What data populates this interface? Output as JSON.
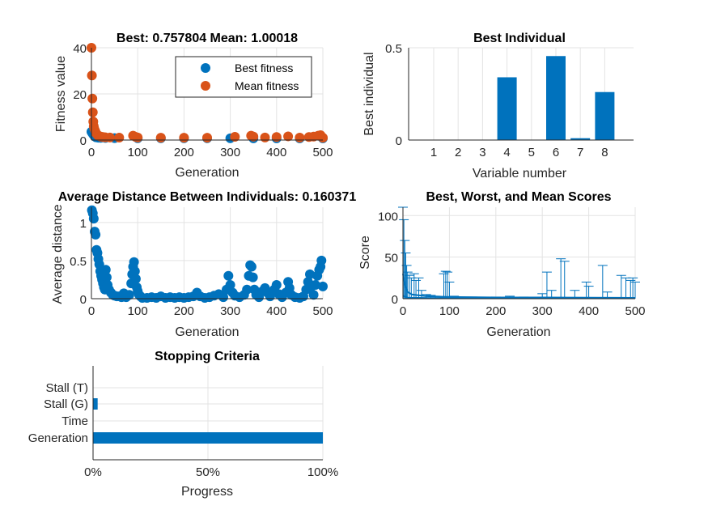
{
  "chart_data": [
    {
      "id": "fitness",
      "type": "scatter",
      "title": "Best: 0.757804 Mean: 1.00018",
      "xlabel": "Generation",
      "ylabel": "Fitness value",
      "xlim": [
        0,
        500
      ],
      "ylim": [
        0,
        40
      ],
      "xticks": [
        0,
        100,
        200,
        300,
        400,
        500
      ],
      "yticks": [
        0,
        20,
        40
      ],
      "grid": true,
      "legend_position": "top-right",
      "series": [
        {
          "name": "Best fitness",
          "color": "#0072BD",
          "points": [
            [
              0,
              3.6
            ],
            [
              2,
              3.0
            ],
            [
              4,
              2.4
            ],
            [
              6,
              1.9
            ],
            [
              8,
              1.5
            ],
            [
              10,
              1.2
            ],
            [
              15,
              1.0
            ],
            [
              20,
              0.95
            ],
            [
              30,
              0.9
            ],
            [
              50,
              0.85
            ],
            [
              100,
              0.8
            ],
            [
              150,
              0.79
            ],
            [
              200,
              0.78
            ],
            [
              250,
              0.77
            ],
            [
              300,
              0.765
            ],
            [
              350,
              0.76
            ],
            [
              400,
              0.76
            ],
            [
              450,
              0.758
            ],
            [
              500,
              0.757804
            ]
          ]
        },
        {
          "name": "Mean fitness",
          "color": "#D95319",
          "points": [
            [
              0,
              40
            ],
            [
              1,
              28
            ],
            [
              2,
              18
            ],
            [
              3,
              12
            ],
            [
              4,
              8
            ],
            [
              5,
              6
            ],
            [
              6,
              5
            ],
            [
              8,
              4
            ],
            [
              10,
              3
            ],
            [
              13,
              2.2
            ],
            [
              16,
              1.8
            ],
            [
              20,
              1.5
            ],
            [
              25,
              1.3
            ],
            [
              30,
              1.2
            ],
            [
              40,
              1.1
            ],
            [
              60,
              1.05
            ],
            [
              90,
              1.9
            ],
            [
              95,
              1.4
            ],
            [
              100,
              1.1
            ],
            [
              150,
              1.0
            ],
            [
              200,
              1.0
            ],
            [
              250,
              1.0
            ],
            [
              310,
              1.4
            ],
            [
              345,
              1.9
            ],
            [
              350,
              1.5
            ],
            [
              375,
              1.1
            ],
            [
              400,
              1.3
            ],
            [
              425,
              1.6
            ],
            [
              450,
              1.05
            ],
            [
              470,
              1.3
            ],
            [
              480,
              1.5
            ],
            [
              490,
              1.9
            ],
            [
              495,
              2.1
            ],
            [
              500,
              1.00018
            ]
          ]
        }
      ]
    },
    {
      "id": "best-individual",
      "type": "bar",
      "title": "Best Individual",
      "xlabel": "Variable number",
      "ylabel": "Best individual",
      "ylim": [
        0,
        0.5
      ],
      "yticks": [
        0,
        0.5
      ],
      "categories": [
        "1",
        "2",
        "3",
        "4",
        "5",
        "6",
        "7",
        "8"
      ],
      "values": [
        0,
        0,
        0,
        0.34,
        0,
        0.455,
        0.01,
        0.26
      ],
      "color": "#0072BD",
      "grid": true
    },
    {
      "id": "avg-distance",
      "type": "scatter",
      "title": "Average Distance Between Individuals: 0.160371",
      "xlabel": "Generation",
      "ylabel": "Average distance",
      "xlim": [
        0,
        500
      ],
      "ylim": [
        0,
        1.2
      ],
      "xticks": [
        0,
        100,
        200,
        300,
        400,
        500
      ],
      "yticks": [
        0,
        0.5,
        1
      ],
      "grid": true,
      "series": [
        {
          "color": "#0072BD",
          "points": [
            [
              1,
              1.16
            ],
            [
              3,
              1.12
            ],
            [
              5,
              1.05
            ],
            [
              7,
              0.88
            ],
            [
              9,
              0.84
            ],
            [
              11,
              0.64
            ],
            [
              13,
              0.6
            ],
            [
              15,
              0.52
            ],
            [
              17,
              0.45
            ],
            [
              19,
              0.36
            ],
            [
              21,
              0.3
            ],
            [
              23,
              0.25
            ],
            [
              25,
              0.2
            ],
            [
              27,
              0.15
            ],
            [
              29,
              0.12
            ],
            [
              31,
              0.38
            ],
            [
              33,
              0.28
            ],
            [
              35,
              0.18
            ],
            [
              38,
              0.12
            ],
            [
              42,
              0.08
            ],
            [
              46,
              0.05
            ],
            [
              50,
              0.04
            ],
            [
              55,
              0.03
            ],
            [
              60,
              0.03
            ],
            [
              65,
              0.02
            ],
            [
              70,
              0.07
            ],
            [
              75,
              0.02
            ],
            [
              82,
              0.05
            ],
            [
              86,
              0.2
            ],
            [
              88,
              0.32
            ],
            [
              90,
              0.42
            ],
            [
              92,
              0.48
            ],
            [
              94,
              0.36
            ],
            [
              96,
              0.26
            ],
            [
              98,
              0.15
            ],
            [
              100,
              0.1
            ],
            [
              103,
              0.05
            ],
            [
              106,
              0.03
            ],
            [
              110,
              0.01
            ],
            [
              120,
              0.01
            ],
            [
              130,
              0.02
            ],
            [
              140,
              0.01
            ],
            [
              150,
              0.03
            ],
            [
              160,
              0.01
            ],
            [
              170,
              0.02
            ],
            [
              180,
              0.01
            ],
            [
              190,
              0.02
            ],
            [
              200,
              0.01
            ],
            [
              210,
              0.02
            ],
            [
              220,
              0.03
            ],
            [
              228,
              0.08
            ],
            [
              235,
              0.03
            ],
            [
              245,
              0.01
            ],
            [
              255,
              0.02
            ],
            [
              265,
              0.04
            ],
            [
              275,
              0.06
            ],
            [
              285,
              0.02
            ],
            [
              292,
              0.12
            ],
            [
              296,
              0.3
            ],
            [
              300,
              0.18
            ],
            [
              305,
              0.08
            ],
            [
              310,
              0.04
            ],
            [
              320,
              0.02
            ],
            [
              330,
              0.05
            ],
            [
              336,
              0.12
            ],
            [
              340,
              0.3
            ],
            [
              343,
              0.44
            ],
            [
              346,
              0.42
            ],
            [
              349,
              0.28
            ],
            [
              352,
              0.12
            ],
            [
              356,
              0.05
            ],
            [
              362,
              0.02
            ],
            [
              370,
              0.1
            ],
            [
              375,
              0.14
            ],
            [
              380,
              0.08
            ],
            [
              386,
              0.03
            ],
            [
              395,
              0.12
            ],
            [
              400,
              0.18
            ],
            [
              405,
              0.06
            ],
            [
              412,
              0.02
            ],
            [
              420,
              0.08
            ],
            [
              425,
              0.22
            ],
            [
              428,
              0.14
            ],
            [
              432,
              0.05
            ],
            [
              440,
              0.02
            ],
            [
              450,
              0.01
            ],
            [
              458,
              0.03
            ],
            [
              464,
              0.12
            ],
            [
              468,
              0.22
            ],
            [
              472,
              0.32
            ],
            [
              475,
              0.16
            ],
            [
              480,
              0.05
            ],
            [
              484,
              0.18
            ],
            [
              488,
              0.3
            ],
            [
              492,
              0.38
            ],
            [
              495,
              0.42
            ],
            [
              497,
              0.5
            ],
            [
              500,
              0.160371
            ]
          ]
        }
      ]
    },
    {
      "id": "scores",
      "type": "line",
      "title": "Best, Worst, and Mean Scores",
      "xlabel": "Generation",
      "ylabel": "Score",
      "xlim": [
        0,
        500
      ],
      "ylim": [
        0,
        110
      ],
      "xticks": [
        0,
        100,
        200,
        300,
        400,
        500
      ],
      "yticks": [
        0,
        50,
        100
      ],
      "grid": true,
      "color": "#0072BD",
      "worst_spikes": [
        [
          0,
          110
        ],
        [
          2,
          95
        ],
        [
          4,
          70
        ],
        [
          6,
          55
        ],
        [
          8,
          40
        ],
        [
          10,
          32
        ],
        [
          14,
          28
        ],
        [
          18,
          25
        ],
        [
          24,
          30
        ],
        [
          28,
          22
        ],
        [
          34,
          25
        ],
        [
          40,
          10
        ],
        [
          50,
          5
        ],
        [
          60,
          4
        ],
        [
          70,
          3
        ],
        [
          88,
          30
        ],
        [
          92,
          33
        ],
        [
          96,
          32
        ],
        [
          100,
          20
        ],
        [
          110,
          3
        ],
        [
          150,
          2
        ],
        [
          200,
          2
        ],
        [
          230,
          3
        ],
        [
          260,
          2
        ],
        [
          300,
          6
        ],
        [
          310,
          32
        ],
        [
          320,
          10
        ],
        [
          340,
          48
        ],
        [
          348,
          45
        ],
        [
          370,
          10
        ],
        [
          395,
          20
        ],
        [
          400,
          15
        ],
        [
          430,
          40
        ],
        [
          440,
          8
        ],
        [
          470,
          28
        ],
        [
          480,
          25
        ],
        [
          490,
          22
        ],
        [
          495,
          25
        ],
        [
          500,
          20
        ]
      ],
      "mean": [
        [
          0,
          30
        ],
        [
          5,
          15
        ],
        [
          10,
          8
        ],
        [
          20,
          5
        ],
        [
          50,
          3
        ],
        [
          100,
          2
        ],
        [
          200,
          1.5
        ],
        [
          300,
          1.5
        ],
        [
          400,
          1.2
        ],
        [
          500,
          1.0
        ]
      ],
      "best": [
        [
          0,
          3.6
        ],
        [
          10,
          1.2
        ],
        [
          50,
          0.85
        ],
        [
          100,
          0.8
        ],
        [
          300,
          0.77
        ],
        [
          500,
          0.76
        ]
      ]
    },
    {
      "id": "stopping",
      "type": "bar",
      "orientation": "horizontal",
      "title": "Stopping Criteria",
      "xlabel": "Progress",
      "xticks": [
        "0%",
        "50%",
        "100%"
      ],
      "categories": [
        "Stall (T)",
        "Stall (G)",
        "Time",
        "Generation"
      ],
      "values": [
        0,
        2,
        0,
        100
      ],
      "color": "#0072BD",
      "grid": true
    }
  ]
}
